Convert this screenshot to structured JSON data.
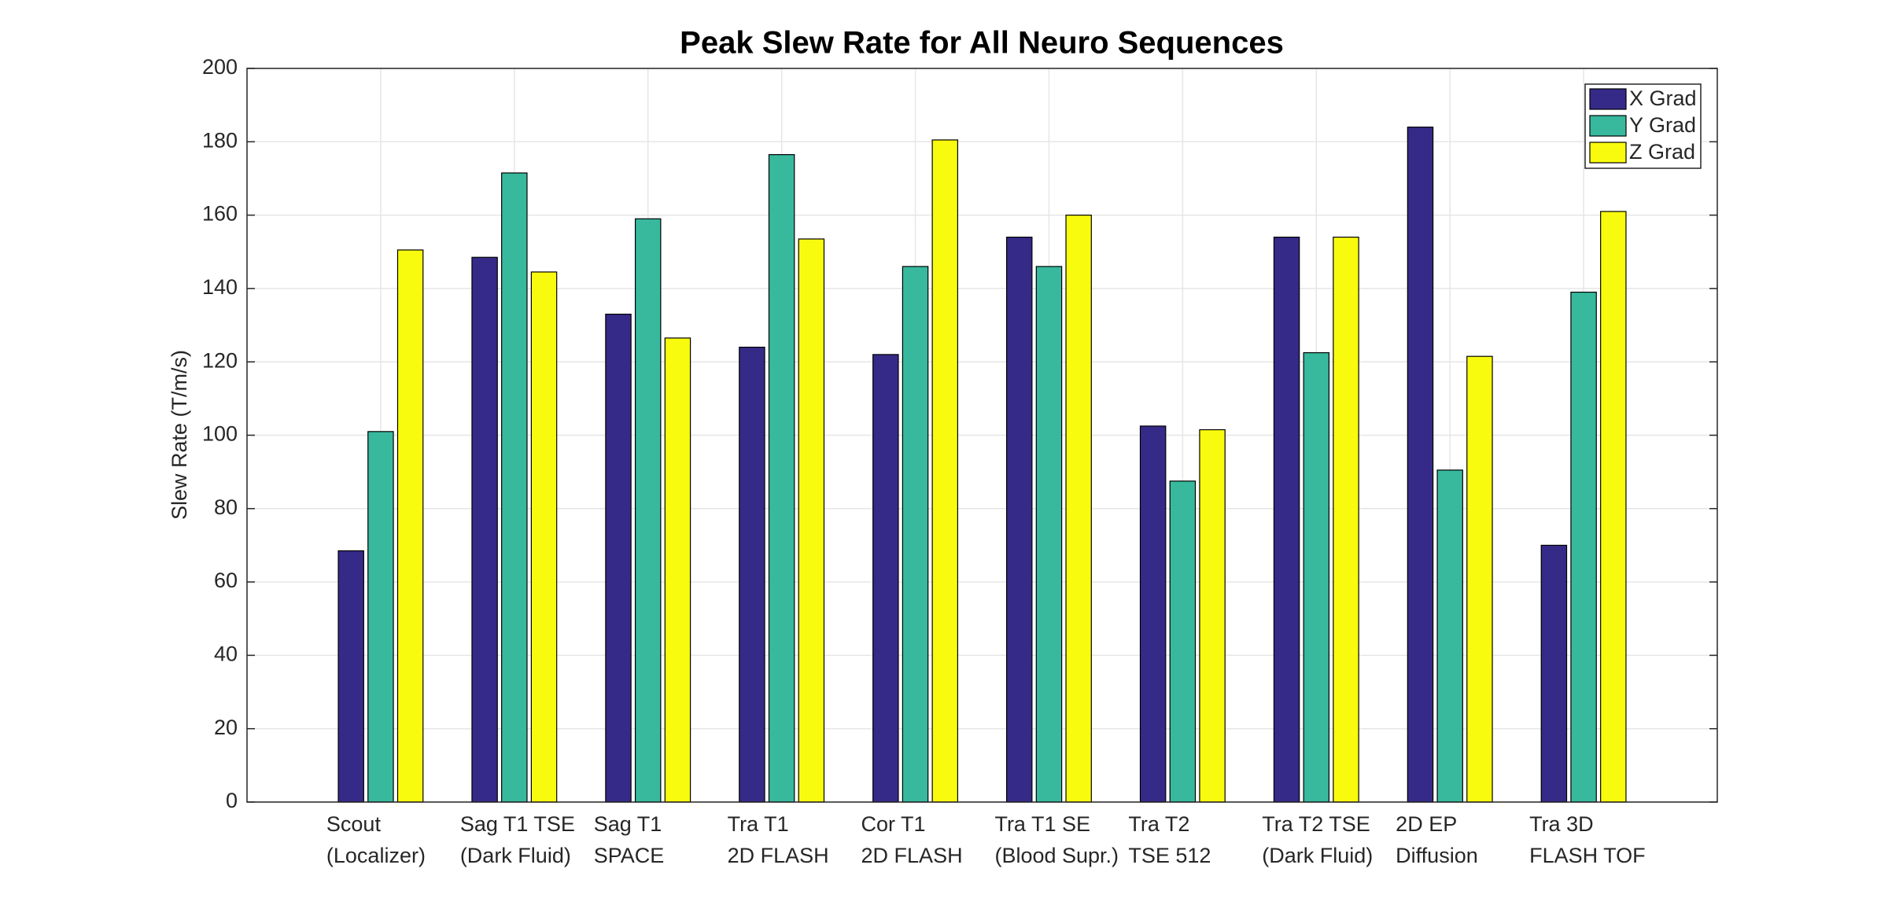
{
  "chart_data": {
    "type": "bar",
    "title": "Peak Slew Rate for All Neuro Sequences",
    "y_label": "Slew Rate (T/m/s)",
    "categories": [
      [
        "Scout",
        "(Localizer)"
      ],
      [
        "Sag T1 TSE",
        "(Dark Fluid)"
      ],
      [
        "Sag T1",
        "SPACE"
      ],
      [
        "Tra T1",
        "2D FLASH"
      ],
      [
        "Cor T1",
        "2D FLASH"
      ],
      [
        "Tra T1 SE",
        "(Blood Supr.)"
      ],
      [
        "Tra T2",
        "TSE 512"
      ],
      [
        "Tra T2 TSE",
        "(Dark Fluid)"
      ],
      [
        "2D EP",
        "Diffusion"
      ],
      [
        "Tra 3D",
        "FLASH TOF"
      ]
    ],
    "series": [
      {
        "name": "X Grad",
        "color": "#352a87",
        "values": [
          68.5,
          148.5,
          133,
          124,
          122,
          154,
          102.5,
          154,
          184,
          70
        ]
      },
      {
        "name": "Y Grad",
        "color": "#38b99e",
        "values": [
          101,
          171.5,
          159,
          176.5,
          146,
          146,
          87.5,
          122.5,
          90.5,
          139
        ]
      },
      {
        "name": "Z Grad",
        "color": "#f9fb0e",
        "values": [
          150.5,
          144.5,
          126.5,
          153.5,
          180.5,
          160,
          101.5,
          154,
          121.5,
          161
        ]
      }
    ],
    "ylim": [
      0,
      200
    ],
    "yticks": [
      0,
      20,
      40,
      60,
      80,
      100,
      120,
      140,
      160,
      180,
      200
    ],
    "grid": true,
    "legend": "top-right"
  }
}
